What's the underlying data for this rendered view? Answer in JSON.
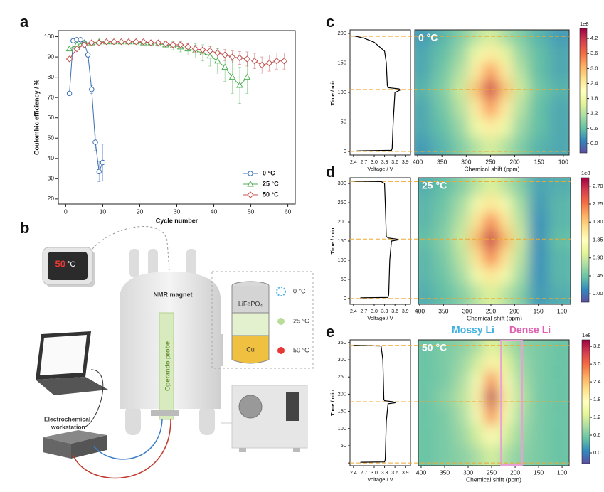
{
  "panel_labels": [
    "a",
    "b",
    "c",
    "d",
    "e"
  ],
  "chart_data": [
    {
      "type": "line",
      "xlabel": "Cycle number",
      "ylabel": "Coulombic efficiency / %",
      "xlim": [
        -2,
        62
      ],
      "ylim": [
        17.5,
        103
      ],
      "xticks": [
        0,
        10,
        20,
        30,
        40,
        50,
        60
      ],
      "yticks": [
        20,
        30,
        40,
        50,
        60,
        70,
        80,
        90,
        100
      ],
      "legend": "lower right",
      "series": [
        {
          "name": "0 °C",
          "color": "#3b6fb6",
          "marker": "circle",
          "x": [
            1,
            2,
            3,
            4,
            5,
            6,
            7,
            8,
            9,
            10
          ],
          "values": [
            72,
            98,
            98.5,
            98.5,
            97,
            91,
            74,
            48,
            33.5,
            38
          ],
          "errors": [
            0.5,
            0.5,
            0.5,
            0.5,
            0.8,
            1,
            2,
            4,
            5,
            9
          ]
        },
        {
          "name": "25 °C",
          "color": "#4caf50",
          "marker": "triangle",
          "x": [
            1,
            3,
            5,
            7,
            9,
            11,
            13,
            15,
            17,
            19,
            21,
            23,
            25,
            27,
            29,
            31,
            33,
            35,
            37,
            39,
            41,
            43,
            45,
            47,
            49
          ],
          "values": [
            94,
            96,
            97,
            97,
            97.5,
            97.5,
            97.5,
            97.5,
            97.5,
            97.5,
            97,
            97,
            96.5,
            96,
            95.5,
            95,
            94,
            93,
            92,
            90.5,
            88,
            85,
            80,
            76,
            80
          ],
          "errors": [
            0.5,
            0.5,
            0.5,
            0.5,
            0.5,
            0.5,
            0.5,
            0.6,
            0.6,
            0.7,
            0.8,
            1,
            1.2,
            1.5,
            2,
            2.5,
            3,
            3.5,
            4,
            5,
            6,
            7,
            8,
            9,
            8
          ]
        },
        {
          "name": "50 °C",
          "color": "#c0504d",
          "marker": "diamond",
          "x": [
            1,
            3,
            5,
            7,
            9,
            11,
            13,
            15,
            17,
            19,
            21,
            23,
            25,
            27,
            29,
            31,
            33,
            35,
            37,
            39,
            41,
            43,
            45,
            47,
            49,
            51,
            53,
            55,
            57,
            59
          ],
          "values": [
            89,
            94,
            96,
            97,
            97,
            97.5,
            97.5,
            97.5,
            97.5,
            97.5,
            97.5,
            97,
            97,
            96.5,
            96,
            96,
            95,
            94,
            93.5,
            93,
            92,
            91,
            90,
            89.5,
            89,
            88,
            86,
            87,
            88,
            88
          ],
          "errors": [
            0.5,
            0.5,
            0.5,
            0.5,
            0.5,
            0.5,
            0.5,
            0.5,
            0.5,
            0.6,
            0.6,
            0.7,
            0.8,
            1,
            1.2,
            1.4,
            1.6,
            1.8,
            2,
            2.2,
            2.5,
            2.8,
            3,
            3.2,
            3.5,
            3.8,
            4,
            4,
            4,
            4
          ]
        }
      ]
    },
    {
      "type": "heatmap",
      "title": "0 °C",
      "xlabel": "Chemical shift (ppm)",
      "ylabel": "Time / min",
      "xlim": [
        406,
        88
      ],
      "ylim": [
        -6,
        206
      ],
      "xticks": [
        400,
        350,
        300,
        250,
        200,
        150,
        100
      ],
      "yticks": [
        0,
        50,
        100,
        150,
        200
      ],
      "zlim": [
        -0.37,
        4.6
      ],
      "zticks": [
        {
          "value": 0,
          "label": "0.0"
        },
        0.6,
        1.2,
        1.8,
        2.4,
        {
          "value": 3,
          "label": "3.0"
        },
        3.6,
        4.2
      ],
      "z_multiplier": "1e8",
      "guide_times": [
        0,
        105,
        195
      ],
      "x": [
        390,
        350,
        310,
        280,
        250,
        220,
        190,
        150,
        110
      ],
      "y": [
        10,
        40,
        75,
        105,
        135,
        165,
        195
      ],
      "z": [
        [
          0.3,
          0.5,
          0.8,
          1.2,
          1.5,
          1.2,
          0.8,
          0.5,
          0.4
        ],
        [
          0.4,
          0.6,
          1.0,
          1.8,
          2.4,
          1.8,
          1.0,
          0.6,
          0.4
        ],
        [
          0.4,
          0.7,
          1.2,
          2.4,
          3.3,
          2.4,
          1.2,
          0.6,
          0.4
        ],
        [
          0.5,
          0.8,
          1.4,
          2.9,
          4.2,
          2.9,
          1.4,
          0.7,
          0.5
        ],
        [
          0.4,
          0.7,
          1.2,
          2.4,
          3.3,
          2.4,
          1.2,
          0.6,
          0.4
        ],
        [
          0.4,
          0.6,
          1.0,
          1.8,
          2.4,
          1.7,
          1.0,
          0.6,
          0.4
        ],
        [
          0.3,
          0.5,
          0.8,
          1.2,
          1.5,
          1.1,
          0.8,
          0.5,
          0.3
        ]
      ],
      "voltage": {
        "xlabel": "Voltage / V",
        "xlim": [
          2.3,
          4.05
        ],
        "xticks": [
          2.4,
          2.7,
          {
            "value": 3,
            "label": "3.0"
          },
          3.3,
          3.6,
          3.9
        ],
        "x": [
          2.5,
          3.5,
          3.52,
          3.55,
          3.6,
          3.75,
          3.72,
          3.4,
          3.38,
          3.35,
          3.3,
          3.0,
          2.7,
          2.4
        ],
        "y": [
          1,
          2,
          5,
          50,
          100,
          104,
          106,
          108,
          112,
          150,
          170,
          185,
          192,
          196
        ]
      }
    },
    {
      "type": "heatmap",
      "title": "25 °C",
      "xlabel": "Chemical shift (ppm)",
      "ylabel": "Time / min",
      "xlim": [
        403,
        82
      ],
      "ylim": [
        -15,
        315
      ],
      "xticks": [
        400,
        350,
        300,
        250,
        200,
        150,
        100
      ],
      "yticks": [
        0,
        50,
        100,
        150,
        200,
        250,
        300
      ],
      "zlim": [
        -0.21,
        2.91
      ],
      "zticks": [
        {
          "value": 0,
          "label": "0.00"
        },
        0.45,
        {
          "value": 0.9,
          "label": "0.90"
        },
        1.35,
        {
          "value": 1.8,
          "label": "1.80"
        },
        2.25,
        {
          "value": 2.7,
          "label": "2.70"
        }
      ],
      "z_multiplier": "1e8",
      "guide_times": [
        0,
        155,
        305
      ],
      "x": [
        390,
        350,
        310,
        280,
        250,
        220,
        190,
        150,
        110
      ],
      "y": [
        15,
        60,
        105,
        155,
        200,
        245,
        295
      ],
      "z": [
        [
          0.3,
          0.4,
          0.55,
          0.8,
          1.0,
          0.8,
          0.55,
          0.2,
          0.3
        ],
        [
          0.35,
          0.45,
          0.7,
          1.2,
          1.6,
          1.2,
          0.7,
          0.15,
          0.35
        ],
        [
          0.35,
          0.5,
          0.8,
          1.6,
          2.2,
          1.6,
          0.8,
          0.15,
          0.35
        ],
        [
          0.4,
          0.55,
          0.9,
          1.9,
          2.7,
          1.9,
          0.9,
          0.15,
          0.4
        ],
        [
          0.35,
          0.5,
          0.8,
          1.6,
          2.2,
          1.6,
          0.8,
          0.15,
          0.35
        ],
        [
          0.35,
          0.45,
          0.7,
          1.2,
          1.6,
          1.2,
          0.7,
          0.2,
          0.35
        ],
        [
          0.3,
          0.4,
          0.55,
          0.8,
          1.0,
          0.8,
          0.55,
          0.25,
          0.3
        ]
      ],
      "voltage": {
        "xlabel": "Voltage / V",
        "xlim": [
          2.3,
          4.05
        ],
        "xticks": [
          2.4,
          2.7,
          {
            "value": 3,
            "label": "3.0"
          },
          3.3,
          3.6,
          3.9
        ],
        "x": [
          2.6,
          3.4,
          3.42,
          3.45,
          3.5,
          3.7,
          3.65,
          3.4,
          3.35,
          3.32,
          3.3,
          3.2,
          2.4
        ],
        "y": [
          2,
          3,
          10,
          100,
          150,
          153,
          155,
          158,
          162,
          250,
          300,
          305,
          306
        ]
      }
    },
    {
      "type": "heatmap",
      "title": "50 °C",
      "xlabel": "Chemical shift (ppm)",
      "ylabel": "Time / min",
      "xlim": [
        406,
        85
      ],
      "ylim": [
        -8,
        358
      ],
      "xticks": [
        400,
        350,
        300,
        250,
        200,
        150,
        100
      ],
      "yticks": [
        0,
        50,
        100,
        150,
        200,
        250,
        300,
        350
      ],
      "zlim": [
        -0.36,
        3.82
      ],
      "zticks": [
        {
          "value": 0,
          "label": "0.0"
        },
        0.6,
        1.2,
        1.8,
        2.4,
        {
          "value": 3,
          "label": "3.0"
        },
        3.6
      ],
      "z_multiplier": "1e8",
      "guide_times": [
        0,
        178,
        342
      ],
      "annotations": [
        {
          "text": "Mossy Li",
          "color": "#3fb0e0"
        },
        {
          "text": "Dense Li",
          "color": "#e05fb0"
        }
      ],
      "highlight_ppm": [
        230,
        185
      ],
      "highlight_color": "#e8a0d8",
      "x": [
        390,
        350,
        310,
        280,
        250,
        220,
        190,
        150,
        110
      ],
      "y": [
        20,
        80,
        140,
        190,
        240,
        290,
        340
      ],
      "z": [
        [
          0.5,
          0.6,
          0.7,
          0.9,
          1.2,
          0.9,
          0.7,
          0.6,
          0.5
        ],
        [
          0.5,
          0.6,
          0.8,
          1.2,
          1.8,
          1.2,
          0.8,
          0.6,
          0.5
        ],
        [
          0.5,
          0.6,
          0.9,
          1.6,
          2.8,
          1.6,
          0.9,
          0.6,
          0.5
        ],
        [
          0.5,
          0.7,
          1.0,
          1.9,
          3.6,
          1.9,
          1.0,
          0.6,
          0.5
        ],
        [
          0.5,
          0.6,
          0.9,
          1.6,
          2.8,
          1.6,
          0.9,
          0.6,
          0.5
        ],
        [
          0.5,
          0.6,
          0.8,
          1.2,
          1.9,
          1.3,
          0.8,
          0.6,
          0.5
        ],
        [
          0.5,
          0.6,
          0.7,
          0.9,
          1.3,
          1.0,
          0.7,
          0.6,
          0.5
        ]
      ],
      "voltage": {
        "xlabel": "Voltage / V",
        "xlim": [
          2.3,
          4.05
        ],
        "xticks": [
          2.4,
          2.7,
          {
            "value": 3,
            "label": "3.0"
          },
          3.3,
          3.6,
          3.9
        ],
        "x": [
          2.6,
          3.3,
          3.32,
          3.35,
          3.4,
          3.6,
          3.55,
          3.3,
          3.28,
          3.25,
          3.2,
          2.4
        ],
        "y": [
          2,
          3,
          10,
          120,
          172,
          175,
          178,
          181,
          185,
          300,
          340,
          342
        ]
      }
    }
  ],
  "diagram": {
    "display_value": "50",
    "display_unit": "°C",
    "magnet_label": "NMR magnet",
    "probe_label": "Operando probe",
    "cell_top": "LiFePO₄",
    "cell_bottom": "Cu",
    "temperatures": [
      "0 °C",
      "25 °C",
      "50 °C"
    ],
    "workstation_label": [
      "Electrochemical",
      "workstation"
    ]
  }
}
